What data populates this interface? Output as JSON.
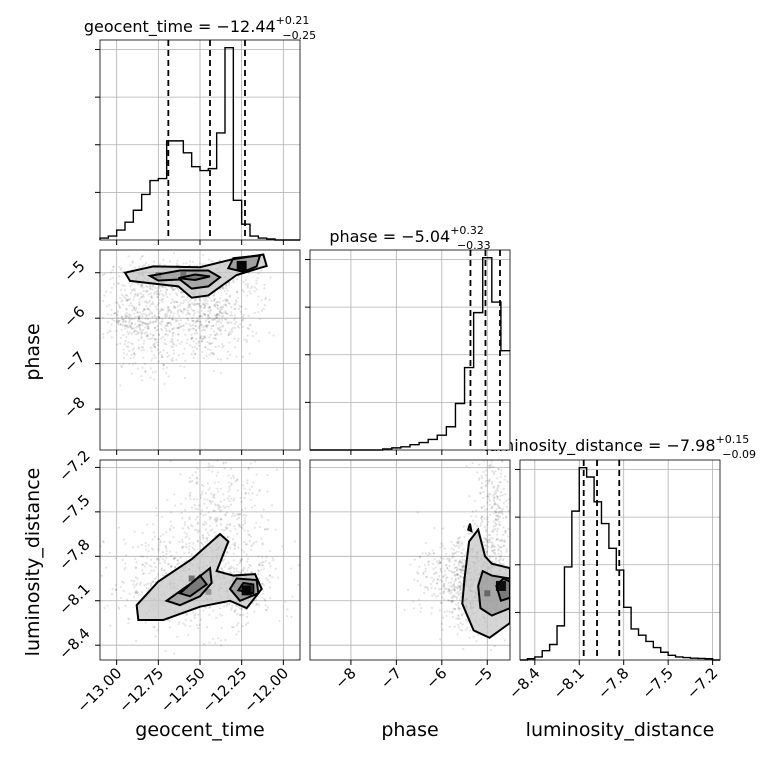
{
  "chart_data": {
    "type": "corner",
    "parameters": [
      {
        "name": "geocent_time",
        "xlabel": "geocent_time",
        "range": [
          -13.1,
          -11.9
        ],
        "ticks": [
          -13.0,
          -12.75,
          -12.5,
          -12.25,
          -12.0
        ],
        "tick_labels": [
          "−13.00",
          "−12.75",
          "−12.50",
          "−12.25",
          "−12.00"
        ],
        "title_main": "geocent_time = −12.44",
        "title_sup": "+0.21",
        "title_sub": "−0.25",
        "quantiles": [
          -12.69,
          -12.44,
          -12.23
        ],
        "hist": {
          "edges": [
            -13.1,
            -13.05,
            -13.0,
            -12.95,
            -12.9,
            -12.85,
            -12.8,
            -12.75,
            -12.7,
            -12.65,
            -12.6,
            -12.55,
            -12.5,
            -12.45,
            -12.4,
            -12.35,
            -12.3,
            -12.25,
            -12.2,
            -12.15,
            -12.1,
            -12.05,
            -12.0,
            -11.95,
            -11.9
          ],
          "values": [
            0.01,
            0.02,
            0.05,
            0.09,
            0.15,
            0.23,
            0.3,
            0.31,
            0.5,
            0.5,
            0.44,
            0.37,
            0.35,
            0.36,
            0.54,
            0.97,
            0.2,
            0.08,
            0.02,
            0.01,
            0.005,
            0.0,
            0.0,
            0.0
          ]
        }
      },
      {
        "name": "phase",
        "xlabel": "phase",
        "ylabel": "phase",
        "range": [
          -8.9,
          -4.5
        ],
        "ticks": [
          -8,
          -7,
          -6,
          -5
        ],
        "tick_labels": [
          "−8",
          "−7",
          "−6",
          "−5"
        ],
        "title_main": "phase = −5.04",
        "title_sup": "+0.32",
        "title_sub": "−0.33",
        "quantiles": [
          -5.37,
          -5.04,
          -4.72
        ],
        "hist": {
          "edges": [
            -8.9,
            -8.7,
            -8.5,
            -8.3,
            -8.1,
            -7.9,
            -7.7,
            -7.5,
            -7.3,
            -7.1,
            -6.9,
            -6.7,
            -6.5,
            -6.3,
            -6.1,
            -5.9,
            -5.7,
            -5.5,
            -5.3,
            -5.1,
            -4.9,
            -4.7,
            -4.5
          ],
          "values": [
            0,
            0,
            0,
            0,
            0,
            0,
            0,
            0,
            0.005,
            0.01,
            0.015,
            0.025,
            0.035,
            0.05,
            0.07,
            0.11,
            0.22,
            0.39,
            0.65,
            0.91,
            0.7,
            0.47
          ]
        }
      },
      {
        "name": "luminosity_distance",
        "xlabel": "luminosity_distance",
        "ylabel": "luminosity_distance",
        "range": [
          -8.5,
          -7.15
        ],
        "ticks": [
          -8.4,
          -8.1,
          -7.8,
          -7.5,
          -7.2
        ],
        "tick_labels": [
          "−8.4",
          "−8.1",
          "−7.8",
          "−7.5",
          "−7.2"
        ],
        "title_main": "luminosity_distance = −7.98",
        "title_sup": "+0.15",
        "title_sub": "−0.09",
        "quantiles": [
          -8.07,
          -7.98,
          -7.83
        ],
        "hist": {
          "edges": [
            -8.5,
            -8.45,
            -8.4,
            -8.35,
            -8.3,
            -8.25,
            -8.2,
            -8.15,
            -8.1,
            -8.05,
            -8.0,
            -7.95,
            -7.9,
            -7.85,
            -7.8,
            -7.75,
            -7.7,
            -7.65,
            -7.6,
            -7.55,
            -7.5,
            -7.45,
            -7.4,
            -7.35,
            -7.3,
            -7.25,
            -7.2,
            -7.15
          ],
          "values": [
            0,
            0.004,
            0.01,
            0.03,
            0.05,
            0.11,
            0.3,
            0.48,
            0.62,
            0.59,
            0.51,
            0.44,
            0.36,
            0.29,
            0.17,
            0.1,
            0.08,
            0.06,
            0.04,
            0.025,
            0.015,
            0.01,
            0.008,
            0.006,
            0.005,
            0.004,
            0.0
          ]
        }
      }
    ],
    "pairs": [
      {
        "x": "geocent_time",
        "y": "phase",
        "y_ticks": [
          -8,
          -7,
          -6,
          -5
        ],
        "y_tick_labels": [
          "−8",
          "−7",
          "−6",
          "−5"
        ],
        "density_peaks": [
          {
            "x": -12.25,
            "y": -4.85,
            "level": 0.98
          },
          {
            "x": -12.6,
            "y": -5.05,
            "level": 0.55
          },
          {
            "x": -12.75,
            "y": -5.05,
            "level": 0.45
          }
        ],
        "contours": [
          [
            [
              -12.95,
              -5.0
            ],
            [
              -12.78,
              -4.86
            ],
            [
              -12.5,
              -4.88
            ],
            [
              -12.3,
              -4.7
            ],
            [
              -12.12,
              -4.6
            ],
            [
              -12.1,
              -4.85
            ],
            [
              -12.28,
              -5.05
            ],
            [
              -12.45,
              -5.5
            ],
            [
              -12.55,
              -5.55
            ],
            [
              -12.63,
              -5.3
            ],
            [
              -12.75,
              -5.25
            ],
            [
              -12.92,
              -5.18
            ]
          ],
          [
            [
              -12.8,
              -5.07
            ],
            [
              -12.62,
              -4.95
            ],
            [
              -12.45,
              -4.95
            ],
            [
              -12.38,
              -5.1
            ],
            [
              -12.45,
              -5.3
            ],
            [
              -12.55,
              -5.35
            ],
            [
              -12.62,
              -5.15
            ],
            [
              -12.75,
              -5.17
            ]
          ],
          [
            [
              -12.63,
              -5.12
            ],
            [
              -12.53,
              -5.04
            ],
            [
              -12.44,
              -5.08
            ],
            [
              -12.53,
              -5.16
            ]
          ],
          [
            [
              -12.33,
              -4.9
            ],
            [
              -12.3,
              -4.68
            ],
            [
              -12.14,
              -4.62
            ],
            [
              -12.16,
              -4.86
            ],
            [
              -12.24,
              -4.98
            ]
          ]
        ],
        "scatter_cloud": [
          {
            "cx": -12.65,
            "cy": -5.15,
            "sx": 0.22,
            "sy": 0.22,
            "n": 420
          },
          {
            "cx": -12.45,
            "cy": -5.9,
            "sx": 0.15,
            "sy": 0.5,
            "n": 520
          },
          {
            "cx": -12.8,
            "cy": -6.3,
            "sx": 0.12,
            "sy": 0.5,
            "n": 260
          },
          {
            "cx": -12.9,
            "cy": -6.0,
            "sx": 0.1,
            "sy": 0.3,
            "n": 180
          }
        ]
      },
      {
        "x": "geocent_time",
        "y": "luminosity_distance",
        "y_ticks": [
          -8.4,
          -8.1,
          -7.8,
          -7.5,
          -7.2
        ],
        "y_tick_labels": [
          "−8.4",
          "−8.1",
          "−7.8",
          "−7.5",
          "−7.2"
        ],
        "density_peaks": [
          {
            "x": -12.22,
            "y": -8.03,
            "level": 0.98
          },
          {
            "x": -12.55,
            "y": -7.95,
            "level": 0.55
          },
          {
            "x": -12.45,
            "y": -8.04,
            "level": 0.4
          }
        ],
        "contours": [
          [
            [
              -12.88,
              -8.13
            ],
            [
              -12.75,
              -7.97
            ],
            [
              -12.55,
              -7.82
            ],
            [
              -12.38,
              -7.65
            ],
            [
              -12.33,
              -7.7
            ],
            [
              -12.4,
              -7.9
            ],
            [
              -12.3,
              -7.93
            ],
            [
              -12.17,
              -7.92
            ],
            [
              -12.13,
              -8.02
            ],
            [
              -12.22,
              -8.15
            ],
            [
              -12.32,
              -8.1
            ],
            [
              -12.5,
              -8.14
            ],
            [
              -12.72,
              -8.23
            ],
            [
              -12.87,
              -8.23
            ]
          ],
          [
            [
              -12.7,
              -8.1
            ],
            [
              -12.55,
              -7.98
            ],
            [
              -12.44,
              -7.88
            ],
            [
              -12.43,
              -7.98
            ],
            [
              -12.5,
              -8.07
            ],
            [
              -12.62,
              -8.13
            ]
          ],
          [
            [
              -12.62,
              -8.05
            ],
            [
              -12.5,
              -7.93
            ],
            [
              -12.46,
              -7.99
            ],
            [
              -12.56,
              -8.07
            ]
          ],
          [
            [
              -12.32,
              -8.02
            ],
            [
              -12.28,
              -7.95
            ],
            [
              -12.16,
              -7.96
            ],
            [
              -12.15,
              -8.05
            ],
            [
              -12.26,
              -8.1
            ]
          ],
          [
            [
              -12.27,
              -8.03
            ],
            [
              -12.24,
              -7.98
            ],
            [
              -12.18,
              -7.99
            ],
            [
              -12.18,
              -8.05
            ]
          ]
        ],
        "scatter_cloud": [
          {
            "cx": -12.55,
            "cy": -7.95,
            "sx": 0.25,
            "sy": 0.18,
            "n": 620
          },
          {
            "cx": -12.4,
            "cy": -7.55,
            "sx": 0.15,
            "sy": 0.25,
            "n": 360
          },
          {
            "cx": -12.25,
            "cy": -8.0,
            "sx": 0.08,
            "sy": 0.08,
            "n": 240
          }
        ]
      },
      {
        "x": "phase",
        "y": "luminosity_distance",
        "density_peaks": [
          {
            "x": -4.7,
            "y": -8.0,
            "level": 0.95
          },
          {
            "x": -5.0,
            "y": -8.05,
            "level": 0.6
          }
        ],
        "contours": [
          [
            [
              -5.5,
              -7.95
            ],
            [
              -5.4,
              -7.7
            ],
            [
              -5.2,
              -7.62
            ],
            [
              -5.05,
              -7.8
            ],
            [
              -4.9,
              -7.85
            ],
            [
              -4.5,
              -7.88
            ],
            [
              -4.5,
              -8.25
            ],
            [
              -4.95,
              -8.35
            ],
            [
              -5.3,
              -8.3
            ],
            [
              -5.55,
              -8.12
            ]
          ],
          [
            [
              -5.2,
              -8.0
            ],
            [
              -5.1,
              -7.9
            ],
            [
              -4.9,
              -7.93
            ],
            [
              -4.5,
              -7.95
            ],
            [
              -4.5,
              -8.15
            ],
            [
              -4.9,
              -8.2
            ],
            [
              -5.15,
              -8.15
            ]
          ],
          [
            [
              -4.8,
              -8.0
            ],
            [
              -4.65,
              -7.95
            ],
            [
              -4.5,
              -7.97
            ],
            [
              -4.5,
              -8.08
            ],
            [
              -4.7,
              -8.1
            ]
          ],
          [
            [
              -5.42,
              -7.62
            ],
            [
              -5.38,
              -7.58
            ],
            [
              -5.35,
              -7.63
            ]
          ]
        ],
        "scatter_cloud": [
          {
            "cx": -5.25,
            "cy": -7.98,
            "sx": 0.35,
            "sy": 0.16,
            "n": 640
          },
          {
            "cx": -4.85,
            "cy": -7.55,
            "sx": 0.2,
            "sy": 0.3,
            "n": 340
          },
          {
            "cx": -5.9,
            "cy": -7.95,
            "sx": 0.4,
            "sy": 0.15,
            "n": 200
          }
        ]
      }
    ]
  }
}
